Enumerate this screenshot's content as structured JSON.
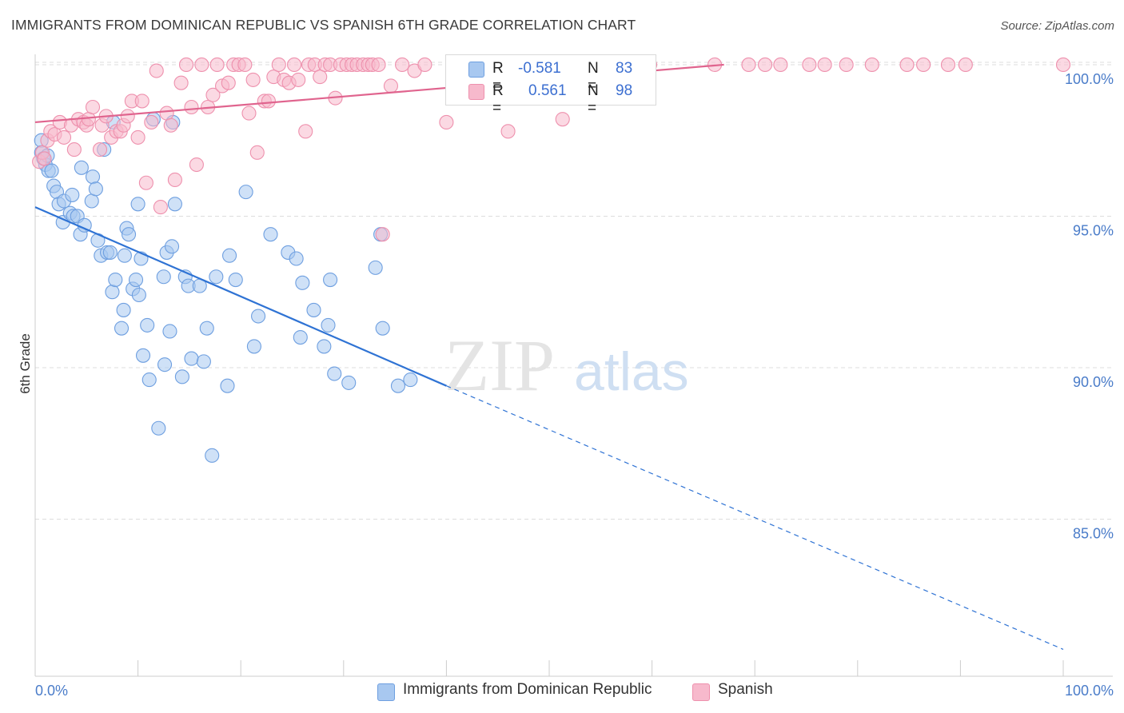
{
  "chart_title": "IMMIGRANTS FROM DOMINICAN REPUBLIC VS SPANISH 6TH GRADE CORRELATION CHART",
  "source": "Source: ZipAtlas.com",
  "watermark": {
    "zip": "ZIP",
    "atlas": "atlas"
  },
  "colors": {
    "blue_fill": "#a8c8f0",
    "blue_stroke": "#6e9fe0",
    "blue_line": "#2f73d4",
    "pink_fill": "#f7b9cc",
    "pink_stroke": "#ee90ad",
    "pink_line": "#e0648e",
    "tick": "#4a7cc9",
    "grid": "#dddddd"
  },
  "legend_top": [
    {
      "r_label": "R =",
      "r_value": "-0.581",
      "n_label": "N =",
      "n_value": "83"
    },
    {
      "r_label": "R =",
      "r_value": "0.561",
      "n_label": "N =",
      "n_value": "98"
    }
  ],
  "legend_bottom": [
    {
      "label": "Immigrants from Dominican Republic"
    },
    {
      "label": "Spanish"
    }
  ],
  "chart_data": {
    "type": "scatter",
    "title": "IMMIGRANTS FROM DOMINICAN REPUBLIC VS SPANISH 6TH GRADE CORRELATION CHART",
    "xlabel": "",
    "ylabel": "6th Grade",
    "xlim": [
      0,
      100
    ],
    "ylim": [
      80.5,
      100.5
    ],
    "x_tick_labels": [
      "0.0%",
      "100.0%"
    ],
    "y_ticks": [
      {
        "value": 100,
        "label": "100.0%"
      },
      {
        "value": 95,
        "label": "95.0%"
      },
      {
        "value": 90,
        "label": "90.0%"
      },
      {
        "value": 85,
        "label": "85.0%"
      }
    ],
    "series": [
      {
        "name": "Immigrants from Dominican Republic",
        "color": "blue",
        "trend": {
          "x0": 0,
          "y0": 95.3,
          "x1": 40,
          "y1": 89.4,
          "x_end": 100,
          "y_end": 80.7
        },
        "points": [
          [
            0.6,
            97.5
          ],
          [
            0.6,
            97.1
          ],
          [
            0.8,
            96.9
          ],
          [
            1.0,
            96.7
          ],
          [
            1.3,
            96.5
          ],
          [
            1.6,
            96.5
          ],
          [
            1.8,
            96.0
          ],
          [
            2.1,
            95.8
          ],
          [
            2.3,
            95.4
          ],
          [
            2.7,
            94.8
          ],
          [
            2.8,
            95.5
          ],
          [
            3.4,
            95.1
          ],
          [
            3.6,
            95.7
          ],
          [
            3.7,
            95.0
          ],
          [
            4.1,
            95.0
          ],
          [
            4.4,
            94.4
          ],
          [
            4.5,
            96.6
          ],
          [
            4.8,
            94.7
          ],
          [
            5.5,
            95.5
          ],
          [
            5.6,
            96.3
          ],
          [
            5.9,
            95.9
          ],
          [
            6.1,
            94.2
          ],
          [
            6.4,
            93.7
          ],
          [
            6.7,
            97.2
          ],
          [
            7.0,
            93.8
          ],
          [
            7.3,
            93.8
          ],
          [
            7.5,
            92.5
          ],
          [
            7.6,
            98.1
          ],
          [
            7.8,
            92.9
          ],
          [
            8.4,
            91.3
          ],
          [
            8.6,
            91.9
          ],
          [
            8.7,
            93.7
          ],
          [
            8.9,
            94.6
          ],
          [
            9.1,
            94.4
          ],
          [
            9.5,
            92.6
          ],
          [
            9.8,
            92.9
          ],
          [
            10.0,
            95.4
          ],
          [
            10.1,
            92.4
          ],
          [
            10.3,
            93.6
          ],
          [
            10.5,
            90.4
          ],
          [
            10.9,
            91.4
          ],
          [
            11.1,
            89.6
          ],
          [
            12.0,
            88.0
          ],
          [
            12.5,
            93.0
          ],
          [
            12.6,
            90.1
          ],
          [
            12.8,
            93.8
          ],
          [
            13.1,
            91.2
          ],
          [
            13.3,
            94.0
          ],
          [
            13.4,
            98.1
          ],
          [
            13.6,
            95.4
          ],
          [
            14.3,
            89.7
          ],
          [
            14.6,
            93.0
          ],
          [
            14.9,
            92.7
          ],
          [
            15.2,
            90.3
          ],
          [
            16.0,
            92.7
          ],
          [
            16.4,
            90.2
          ],
          [
            16.7,
            91.3
          ],
          [
            17.2,
            87.1
          ],
          [
            17.6,
            93.0
          ],
          [
            18.7,
            89.4
          ],
          [
            18.9,
            93.7
          ],
          [
            19.5,
            92.9
          ],
          [
            20.5,
            95.8
          ],
          [
            21.3,
            90.7
          ],
          [
            21.7,
            91.7
          ],
          [
            22.9,
            94.4
          ],
          [
            24.6,
            93.8
          ],
          [
            25.4,
            93.6
          ],
          [
            25.8,
            91.0
          ],
          [
            26.0,
            92.8
          ],
          [
            27.1,
            91.9
          ],
          [
            28.1,
            90.7
          ],
          [
            28.5,
            91.4
          ],
          [
            28.7,
            92.9
          ],
          [
            29.1,
            89.8
          ],
          [
            30.5,
            89.5
          ],
          [
            33.1,
            93.3
          ],
          [
            33.6,
            94.4
          ],
          [
            33.8,
            91.3
          ],
          [
            35.3,
            89.4
          ],
          [
            36.5,
            89.6
          ],
          [
            1.2,
            97.0
          ],
          [
            11.5,
            98.2
          ]
        ]
      },
      {
        "name": "Spanish",
        "color": "pink",
        "trend": {
          "x0": 0,
          "y0": 98.1,
          "x1": 67,
          "y1": 100.0,
          "x_end": 67,
          "y_end": 100.0
        },
        "points": [
          [
            0.4,
            96.8
          ],
          [
            0.7,
            97.1
          ],
          [
            0.9,
            96.9
          ],
          [
            1.2,
            97.5
          ],
          [
            1.5,
            97.8
          ],
          [
            1.9,
            97.7
          ],
          [
            2.4,
            98.1
          ],
          [
            2.8,
            97.6
          ],
          [
            3.5,
            98.0
          ],
          [
            3.8,
            97.2
          ],
          [
            4.2,
            98.2
          ],
          [
            4.7,
            98.1
          ],
          [
            5.0,
            98.0
          ],
          [
            5.2,
            98.2
          ],
          [
            5.6,
            98.6
          ],
          [
            6.3,
            97.2
          ],
          [
            6.5,
            98.0
          ],
          [
            6.9,
            98.3
          ],
          [
            7.4,
            97.6
          ],
          [
            7.9,
            97.8
          ],
          [
            8.3,
            97.8
          ],
          [
            8.6,
            98.0
          ],
          [
            9.0,
            98.3
          ],
          [
            9.4,
            98.8
          ],
          [
            10.0,
            97.6
          ],
          [
            10.4,
            98.8
          ],
          [
            10.8,
            96.1
          ],
          [
            11.3,
            98.1
          ],
          [
            11.8,
            99.8
          ],
          [
            12.2,
            95.3
          ],
          [
            12.8,
            98.4
          ],
          [
            13.2,
            98.0
          ],
          [
            13.6,
            96.2
          ],
          [
            14.2,
            99.4
          ],
          [
            14.7,
            100.0
          ],
          [
            15.2,
            98.6
          ],
          [
            15.7,
            96.7
          ],
          [
            16.2,
            100.0
          ],
          [
            16.8,
            98.6
          ],
          [
            17.3,
            99.0
          ],
          [
            17.7,
            100.0
          ],
          [
            18.2,
            99.3
          ],
          [
            18.8,
            99.4
          ],
          [
            19.3,
            100.0
          ],
          [
            19.8,
            100.0
          ],
          [
            20.4,
            100.0
          ],
          [
            20.8,
            98.4
          ],
          [
            21.2,
            99.5
          ],
          [
            21.6,
            97.1
          ],
          [
            22.3,
            98.8
          ],
          [
            22.7,
            98.8
          ],
          [
            23.2,
            99.6
          ],
          [
            23.7,
            100.0
          ],
          [
            24.2,
            99.5
          ],
          [
            24.7,
            99.4
          ],
          [
            25.2,
            100.0
          ],
          [
            25.6,
            99.5
          ],
          [
            26.3,
            97.8
          ],
          [
            26.6,
            100.0
          ],
          [
            27.2,
            100.0
          ],
          [
            27.7,
            99.6
          ],
          [
            28.2,
            100.0
          ],
          [
            28.7,
            100.0
          ],
          [
            29.2,
            98.9
          ],
          [
            29.7,
            100.0
          ],
          [
            30.3,
            100.0
          ],
          [
            30.8,
            100.0
          ],
          [
            31.3,
            100.0
          ],
          [
            31.9,
            100.0
          ],
          [
            32.4,
            100.0
          ],
          [
            32.8,
            100.0
          ],
          [
            33.4,
            100.0
          ],
          [
            33.8,
            94.4
          ],
          [
            34.6,
            99.3
          ],
          [
            35.7,
            100.0
          ],
          [
            36.9,
            99.8
          ],
          [
            37.9,
            100.0
          ],
          [
            40.0,
            98.1
          ],
          [
            42.7,
            100.0
          ],
          [
            46.0,
            97.8
          ],
          [
            47.5,
            100.0
          ],
          [
            51.3,
            98.2
          ],
          [
            53.5,
            100.0
          ],
          [
            55.6,
            100.0
          ],
          [
            59.8,
            100.0
          ],
          [
            66.1,
            100.0
          ],
          [
            69.4,
            100.0
          ],
          [
            71.0,
            100.0
          ],
          [
            72.5,
            100.0
          ],
          [
            75.3,
            100.0
          ],
          [
            76.8,
            100.0
          ],
          [
            78.9,
            100.0
          ],
          [
            81.4,
            100.0
          ],
          [
            84.8,
            100.0
          ],
          [
            86.4,
            100.0
          ],
          [
            88.8,
            100.0
          ],
          [
            90.5,
            100.0
          ],
          [
            100.0,
            100.0
          ]
        ]
      }
    ]
  }
}
